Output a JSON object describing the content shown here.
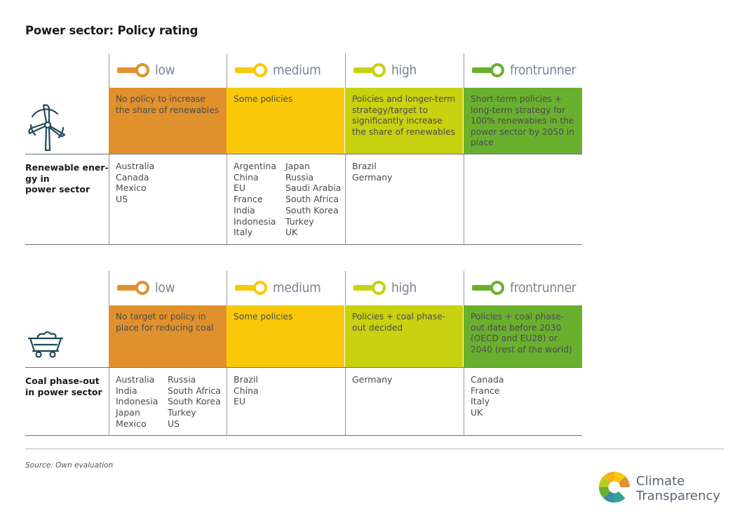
{
  "title": "Power sector: Policy rating",
  "ratings": [
    {
      "key": "low",
      "label": "low",
      "bar_color": "#e0912d",
      "knob_color": "#e0912d"
    },
    {
      "key": "medium",
      "label": "medium",
      "bar_color": "#f9c909",
      "knob_color": "#f9c909"
    },
    {
      "key": "high",
      "label": "high",
      "bar_color": "#c8d210",
      "knob_color": "#c8d210"
    },
    {
      "key": "frontrunner",
      "label": "frontrunner",
      "bar_color": "#6ab02f",
      "knob_color": "#6ab02f"
    }
  ],
  "sections": [
    {
      "icon": "wind-turbine-icon",
      "label": "Renewable ener-\ngy in\npower sector",
      "descriptions": [
        "No policy to increase the share of renewables",
        "Some policies",
        "Policies and longer-term strategy/target to significantly increase the share of renewables",
        "Short-term policies + long-term strategy for 100% renewables in the power sector by 2050 in place"
      ],
      "countries": {
        "low": [
          [
            "Australia",
            "Canada",
            "Mexico",
            "US"
          ]
        ],
        "medium": [
          [
            "Argentina",
            "China",
            "EU",
            "France",
            "India",
            "Indonesia",
            "Italy"
          ],
          [
            "Japan",
            "Russia",
            "Saudi Arabia",
            "South Africa",
            "South Korea",
            "Turkey",
            "UK"
          ]
        ],
        "high": [
          [
            "Brazil",
            "Germany"
          ]
        ],
        "frontrunner": [
          []
        ]
      }
    },
    {
      "icon": "coal-cart-icon",
      "label": "Coal phase-out\nin power sector",
      "descriptions": [
        "No target or policy in place for reducing coal",
        "Some policies",
        "Policies + coal phase-out decided",
        "Policies + coal phase-out date before 2030 (OECD and EU28) or 2040 (rest of the world)"
      ],
      "countries": {
        "low": [
          [
            "Australia",
            "India",
            "Indonesia",
            "Japan",
            "Mexico"
          ],
          [
            "Russia",
            "South Africa",
            "South Korea",
            "Turkey",
            "US"
          ]
        ],
        "medium": [
          [
            "Brazil",
            "China",
            "EU"
          ]
        ],
        "high": [
          [
            "Germany"
          ]
        ],
        "frontrunner": [
          [
            "Canada",
            "France",
            "Italy",
            "UK"
          ]
        ]
      }
    }
  ],
  "footer": {
    "source": "Source: Own evaluation",
    "logo_line1": "Climate",
    "logo_line2": "Transparency"
  }
}
